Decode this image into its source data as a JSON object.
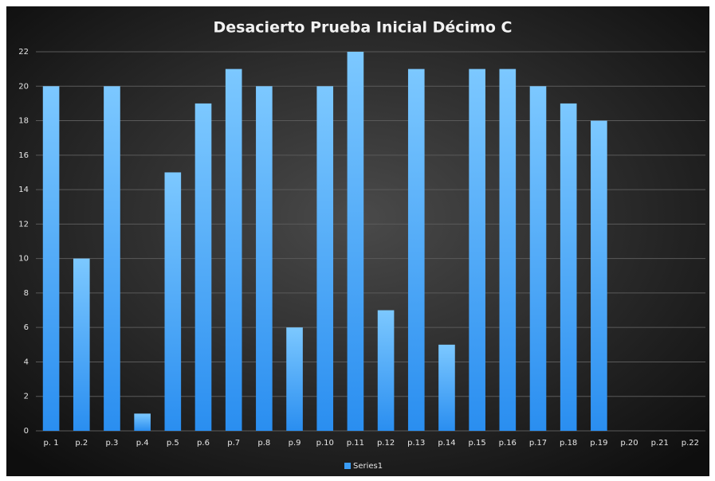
{
  "chart_data": {
    "type": "bar",
    "title": "Desacierto Prueba Inicial  Décimo C",
    "categories": [
      "p. 1",
      "p.2",
      "p.3",
      "p.4",
      "p.5",
      "p.6",
      "p.7",
      "p.8",
      "p.9",
      "p.10",
      "p.11",
      "p.12",
      "p.13",
      "p.14",
      "p.15",
      "p.16",
      "p.17",
      "p.18",
      "p.19",
      "p.20",
      "p.21",
      "p.22"
    ],
    "series": [
      {
        "name": "Series1",
        "color": "#3a9cf5",
        "values": [
          20,
          10,
          20,
          1,
          15,
          19,
          21,
          20,
          6,
          20,
          22,
          7,
          21,
          5,
          21,
          21,
          20,
          19,
          18,
          null,
          null,
          null
        ]
      }
    ],
    "ylim": [
      0,
      22
    ],
    "yticks": [
      0,
      2,
      4,
      6,
      8,
      10,
      12,
      14,
      16,
      18,
      20,
      22
    ],
    "grid": true,
    "legend": "bottom"
  }
}
